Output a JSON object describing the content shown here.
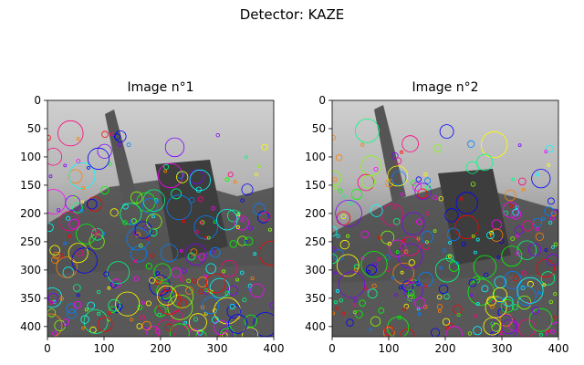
{
  "figure": {
    "suptitle": "Detector: KAZE"
  },
  "panels": [
    {
      "title": "Image n°1",
      "x_ticks": [
        "0",
        "100",
        "200",
        "300",
        "400"
      ],
      "y_ticks": [
        "0",
        "50",
        "100",
        "150",
        "200",
        "250",
        "300",
        "350",
        "400"
      ]
    },
    {
      "title": "Image n°2",
      "x_ticks": [
        "0",
        "100",
        "200",
        "300",
        "400"
      ],
      "y_ticks": [
        "0",
        "50",
        "100",
        "150",
        "200",
        "250",
        "300",
        "350",
        "400"
      ]
    }
  ]
}
